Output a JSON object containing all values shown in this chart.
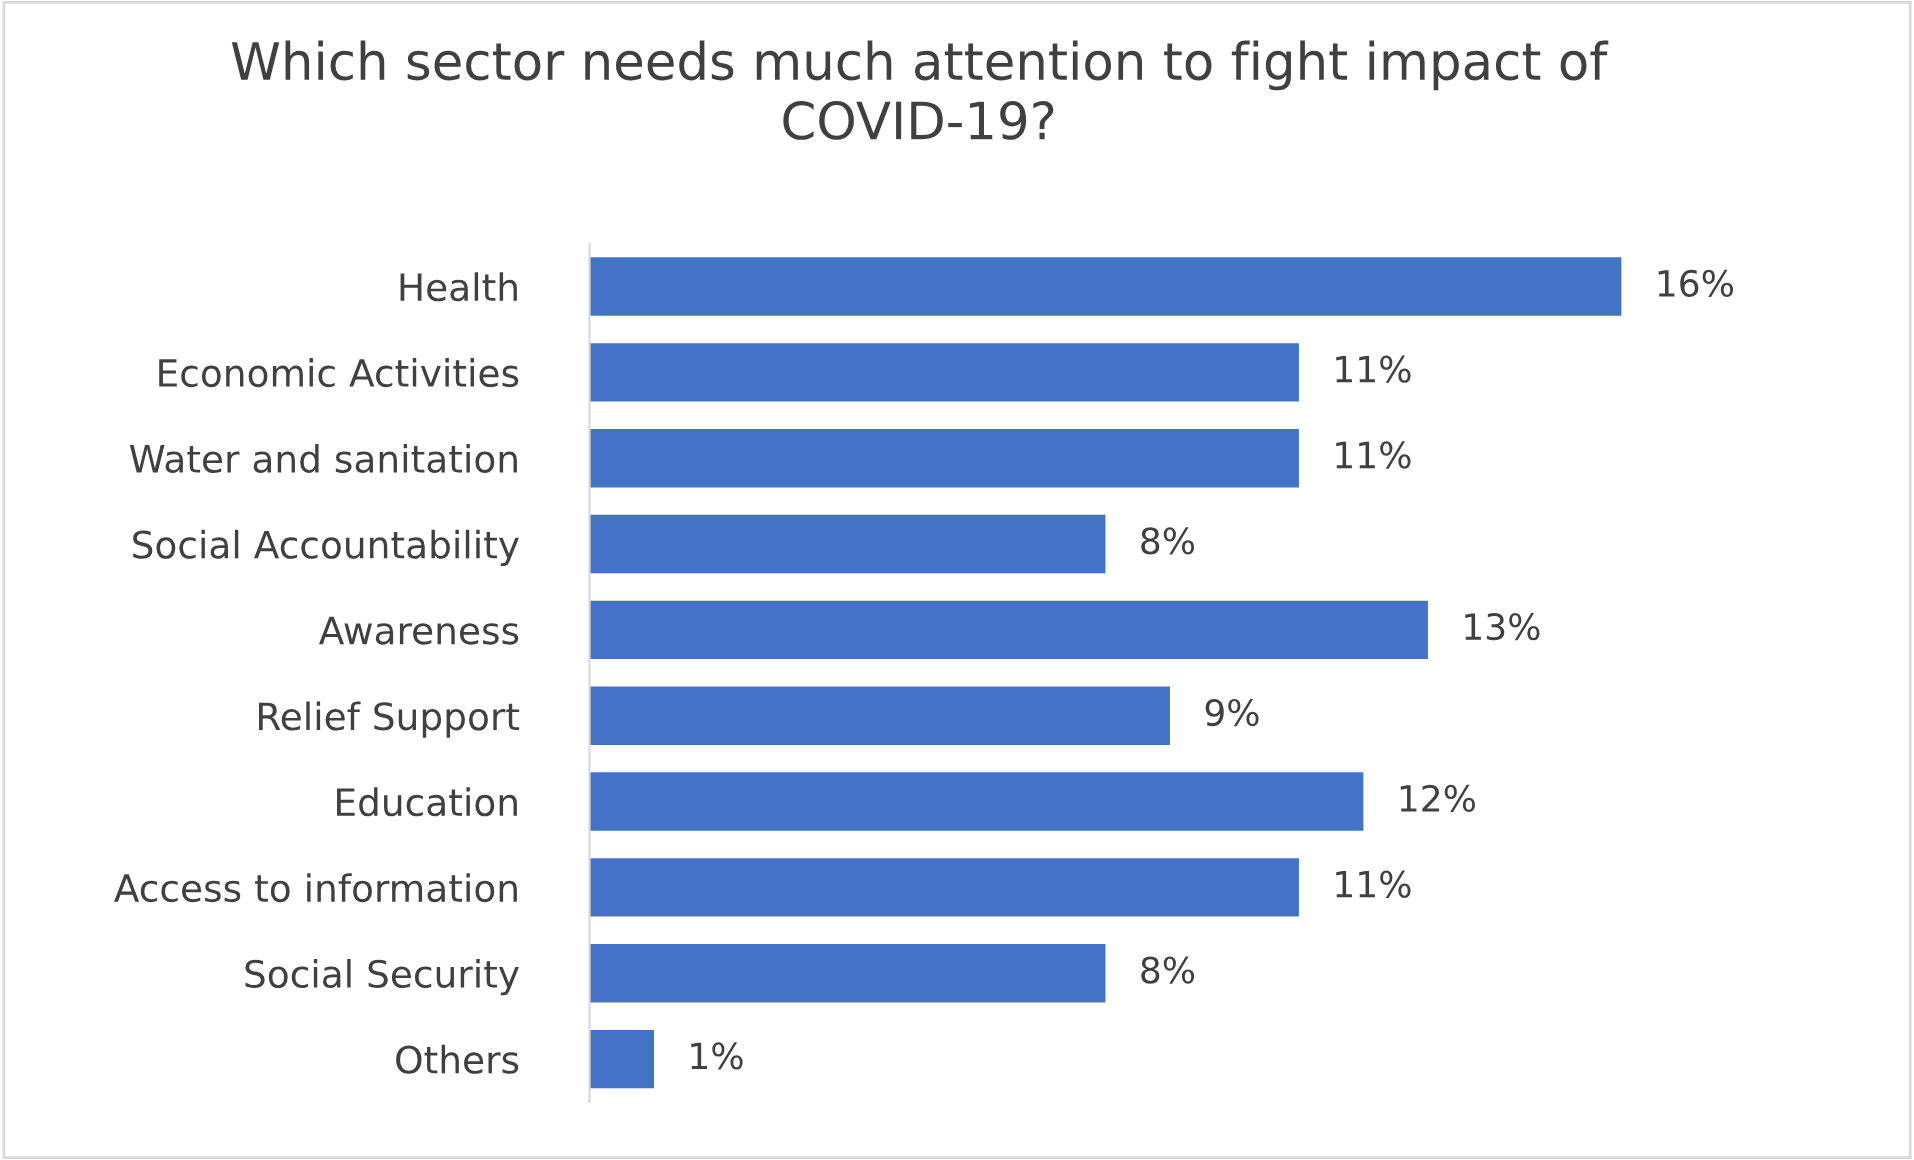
{
  "chart_data": {
    "type": "bar",
    "orientation": "horizontal",
    "title": "Which sector needs much attention to fight impact of\nCOVID-19?",
    "categories": [
      "Health",
      "Economic Activities",
      "Water and sanitation",
      "Social Accountability",
      "Awareness",
      "Relief Support",
      "Education",
      "Access to information",
      "Social Security",
      "Others"
    ],
    "values": [
      16,
      11,
      11,
      8,
      13,
      9,
      12,
      11,
      8,
      1
    ],
    "value_labels": [
      "16%",
      "11%",
      "11%",
      "8%",
      "13%",
      "9%",
      "12%",
      "11%",
      "8%",
      "1%"
    ],
    "color": "#4472c4",
    "grid": false,
    "legend": false
  }
}
